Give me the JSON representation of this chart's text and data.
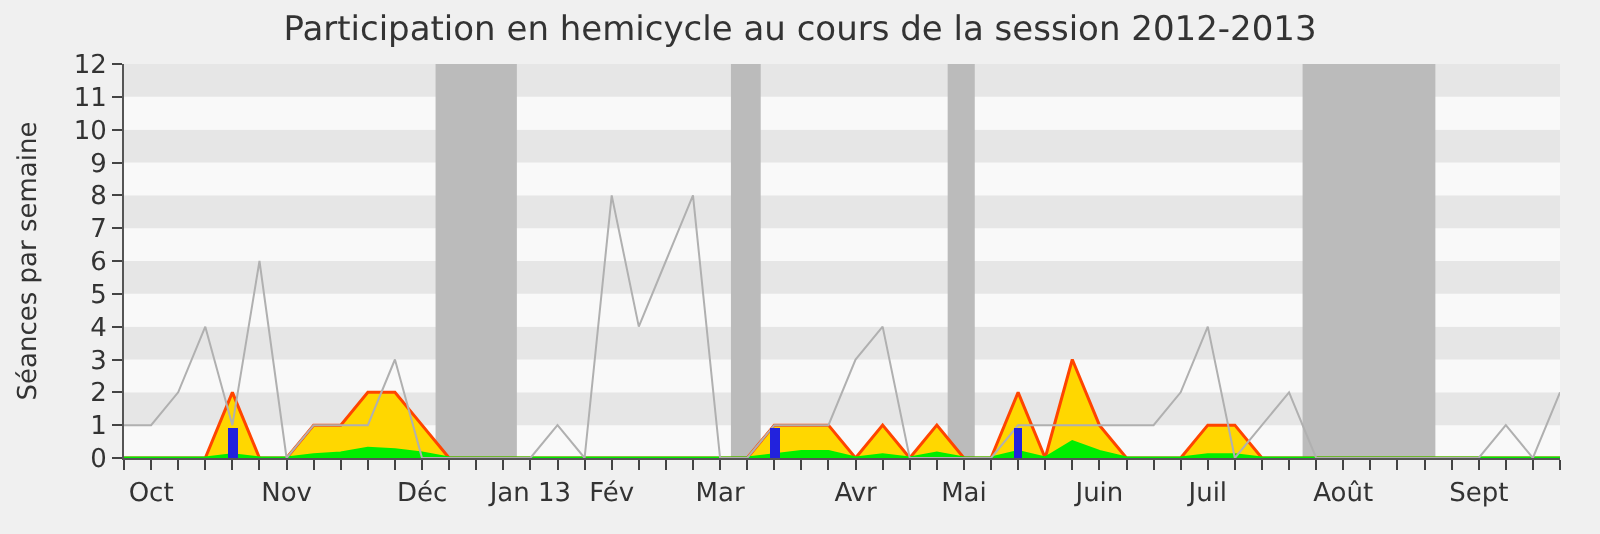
{
  "chart_data": {
    "type": "area",
    "title": "Participation en hemicycle au cours de la session 2012-2013",
    "ylabel": "Séances par semaine",
    "categories": [
      null,
      "Oct",
      null,
      null,
      null,
      null,
      "Nov",
      null,
      null,
      null,
      null,
      "Déc",
      null,
      null,
      null,
      "Jan 13",
      null,
      null,
      "Fév",
      null,
      null,
      null,
      "Mar",
      null,
      null,
      null,
      null,
      "Avr",
      null,
      null,
      null,
      "Mai",
      null,
      null,
      null,
      null,
      "Juin",
      null,
      null,
      null,
      "Juil",
      null,
      null,
      null,
      null,
      "Août",
      null,
      null,
      null,
      null,
      "Sept",
      null,
      null,
      null
    ],
    "ylim": [
      0,
      12
    ],
    "yticks": [
      0,
      1,
      2,
      3,
      4,
      5,
      6,
      7,
      8,
      9,
      10,
      11,
      12
    ],
    "legend": false,
    "series": [
      {
        "color": "#ffd700",
        "values": [
          0,
          0,
          0,
          0,
          2,
          0,
          0,
          1,
          1,
          2,
          2,
          1,
          0,
          0,
          0,
          0,
          0,
          0,
          0,
          0,
          0,
          0,
          0,
          0,
          1,
          1,
          1,
          0,
          1,
          0,
          1,
          0,
          0,
          2,
          0,
          3,
          1,
          0,
          0,
          0,
          1,
          1,
          0,
          0,
          0,
          0,
          0,
          0,
          0,
          0,
          0,
          0,
          0,
          0
        ]
      },
      {
        "color": "#00ee00",
        "values": [
          0,
          0,
          0,
          0,
          0.1,
          0,
          0,
          0.1,
          0.15,
          0.3,
          0.25,
          0.15,
          0,
          0,
          0,
          0,
          0,
          0,
          0,
          0,
          0,
          0,
          0,
          0,
          0.1,
          0.2,
          0.2,
          0,
          0.1,
          0,
          0.15,
          0,
          0,
          0.2,
          0,
          0.5,
          0.2,
          0,
          0,
          0,
          0.1,
          0.1,
          0,
          0,
          0,
          0,
          0,
          0,
          0,
          0,
          0,
          0,
          0,
          0
        ]
      },
      {
        "type": "line",
        "color": "#b0b0b0",
        "values": [
          1,
          1,
          2,
          4,
          1,
          6,
          0,
          1,
          1,
          1,
          3,
          0,
          0,
          0,
          0,
          0,
          1,
          0,
          8,
          4,
          6,
          8,
          0,
          0,
          1,
          1,
          1,
          3,
          4,
          0,
          0,
          0,
          0,
          1,
          1,
          1,
          1,
          1,
          1,
          2,
          4,
          0,
          1,
          2,
          0,
          0,
          0,
          0,
          0,
          0,
          0,
          1,
          0,
          2
        ]
      },
      {
        "type": "bar",
        "color": "#2222dd",
        "values": [
          null,
          null,
          null,
          null,
          0.9,
          null,
          null,
          null,
          null,
          null,
          null,
          null,
          null,
          null,
          null,
          null,
          null,
          null,
          null,
          null,
          null,
          null,
          null,
          null,
          0.9,
          null,
          null,
          null,
          null,
          null,
          null,
          null,
          null,
          0.9,
          null,
          null,
          null,
          null,
          null,
          null,
          null,
          null,
          null,
          null,
          null,
          null,
          null,
          null,
          null,
          null,
          null,
          null,
          null,
          null
        ]
      }
    ]
  }
}
